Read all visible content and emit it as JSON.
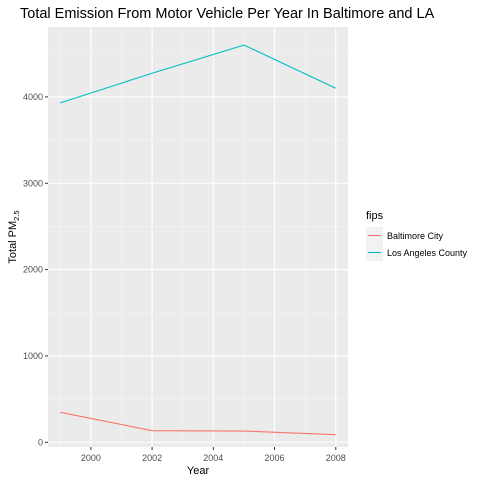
{
  "chart_data": {
    "type": "line",
    "title": "Total Emission From Motor Vehicle Per Year In Baltimore and LA",
    "xlabel": "Year",
    "ylabel_main": "Total PM",
    "ylabel_sub": "2.5",
    "x": [
      1999,
      2002,
      2005,
      2008
    ],
    "xlim": [
      1998.6,
      2008.4
    ],
    "xticks": [
      2000,
      2002,
      2004,
      2006,
      2008
    ],
    "xtick_labels": [
      "2000",
      "2002",
      "2004",
      "2006",
      "2008"
    ],
    "ylim": [
      -55,
      4810
    ],
    "yticks": [
      0,
      1000,
      2000,
      3000,
      4000
    ],
    "ytick_labels": [
      "0",
      "1000",
      "2000",
      "3000",
      "4000"
    ],
    "grid": true,
    "legend_title": "fips",
    "legend_position": "right",
    "series": [
      {
        "name": "Baltimore City",
        "color": "#F8766D",
        "values": [
          347,
          134,
          130,
          88
        ]
      },
      {
        "name": "Los Angeles County",
        "color": "#00BFC4",
        "values": [
          3931,
          4274,
          4601,
          4101
        ]
      }
    ]
  }
}
